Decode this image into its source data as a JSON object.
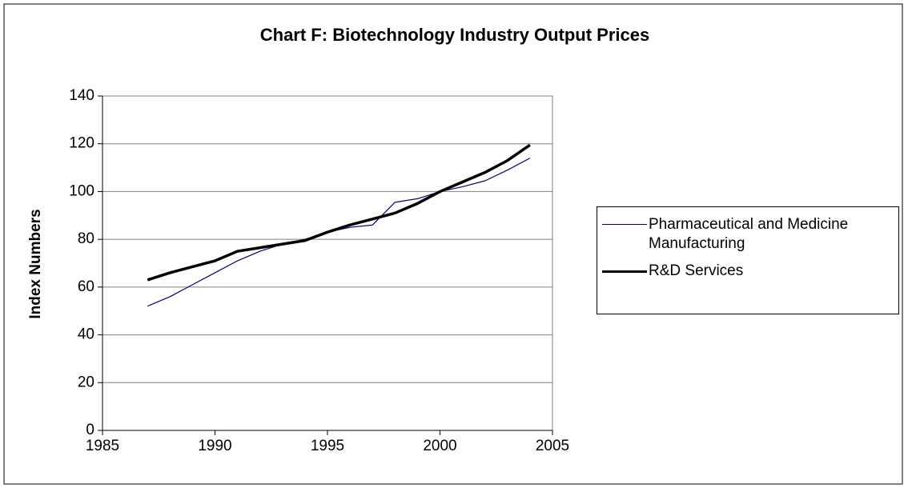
{
  "chart_data": {
    "type": "line",
    "title": "Chart F: Biotechnology Industry Output Prices",
    "y_label": "Index Numbers",
    "x": [
      1987,
      1988,
      1989,
      1990,
      1991,
      1992,
      1993,
      1994,
      1995,
      1996,
      1997,
      1998,
      1999,
      2000,
      2001,
      2002,
      2003,
      2004
    ],
    "series": [
      {
        "name": "Pharmaceutical and Medicine Manufacturing",
        "color": "#000080",
        "width": 1.2,
        "values": [
          52,
          56,
          61,
          66,
          71,
          75,
          78,
          80,
          83,
          85,
          86,
          95.5,
          97,
          100,
          102,
          104.5,
          109,
          114
        ]
      },
      {
        "name": "R&D Services",
        "color": "#000000",
        "width": 3.5,
        "values": [
          63,
          66,
          68.5,
          71,
          75,
          76.5,
          78,
          79.5,
          83,
          86,
          88.5,
          91,
          95,
          100,
          104,
          108,
          113,
          119.5
        ]
      }
    ],
    "xlim": [
      1985,
      2005
    ],
    "xticks": [
      1985,
      1990,
      1995,
      2000,
      2005
    ],
    "ylim": [
      0,
      140
    ],
    "yticks": [
      0,
      20,
      40,
      60,
      80,
      100,
      120,
      140
    ],
    "grid": true,
    "legend": "right"
  }
}
